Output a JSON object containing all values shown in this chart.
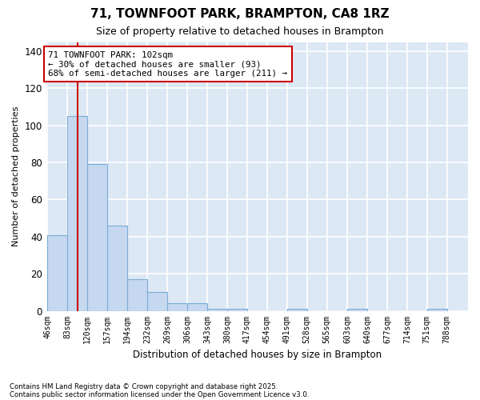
{
  "title": "71, TOWNFOOT PARK, BRAMPTON, CA8 1RZ",
  "subtitle": "Size of property relative to detached houses in Brampton",
  "xlabel": "Distribution of detached houses by size in Brampton",
  "ylabel": "Number of detached properties",
  "bin_edges": [
    46,
    83,
    120,
    157,
    194,
    232,
    269,
    306,
    343,
    380,
    417,
    454,
    491,
    528,
    565,
    603,
    640,
    677,
    714,
    751,
    788
  ],
  "bar_heights": [
    41,
    105,
    79,
    46,
    17,
    10,
    4,
    4,
    1,
    1,
    0,
    0,
    1,
    0,
    0,
    1,
    0,
    0,
    0,
    1
  ],
  "bar_color": "#c5d8f0",
  "bar_edge_color": "#7aadd4",
  "vline_x": 102,
  "vline_color": "#cc0000",
  "annotation_text": "71 TOWNFOOT PARK: 102sqm\n← 30% of detached houses are smaller (93)\n68% of semi-detached houses are larger (211) →",
  "annotation_bbox_facecolor": "white",
  "annotation_bbox_edgecolor": "#cc0000",
  "ylim": [
    0,
    145
  ],
  "yticks": [
    0,
    20,
    40,
    60,
    80,
    100,
    120,
    140
  ],
  "plot_bg_color": "#dde8f5",
  "fig_bg_color": "#ffffff",
  "grid_color": "#ffffff",
  "footnote1": "Contains HM Land Registry data © Crown copyright and database right 2025.",
  "footnote2": "Contains public sector information licensed under the Open Government Licence v3.0."
}
